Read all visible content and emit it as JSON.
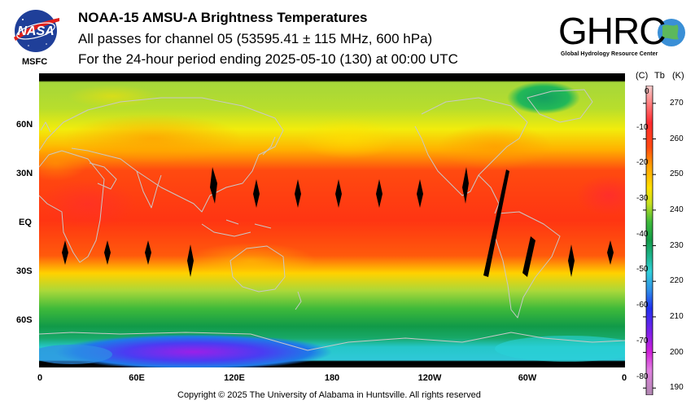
{
  "header": {
    "title": "NOAA-15 AMSU-A Brightness Temperatures",
    "subtitle": "All passes for channel 05 (53595.41 ± 115 MHz, 600 hPa)",
    "period": "For the 24-hour period ending 2025-05-10 (130) at 00:00 UTC"
  },
  "logos": {
    "nasa_text": "NASA",
    "msfc_text": "MSFC",
    "ghrc_text": "GHRC",
    "ghrc_subtitle": "Global Hydrology Resource Center"
  },
  "map": {
    "lat_labels": [
      "60N",
      "30N",
      "EQ",
      "30S",
      "60S"
    ],
    "lon_labels": [
      "0",
      "60E",
      "120E",
      "180",
      "120W",
      "60W",
      "0"
    ],
    "missing_data_color": "#000000",
    "coastline_color": "#c8c8c8"
  },
  "colorbar": {
    "header_c": "(C)",
    "header_tb": "Tb",
    "header_k": "(K)",
    "celsius_ticks": [
      "0",
      "-10",
      "-20",
      "-30",
      "-40",
      "-50",
      "-60",
      "-70",
      "-80"
    ],
    "kelvin_ticks": [
      "270",
      "260",
      "250",
      "240",
      "230",
      "220",
      "210",
      "200",
      "190"
    ],
    "range_k": [
      188,
      275
    ]
  },
  "footer": {
    "copyright": "Copyright © 2025 The University of Alabama in Huntsville.  All rights reserved"
  }
}
